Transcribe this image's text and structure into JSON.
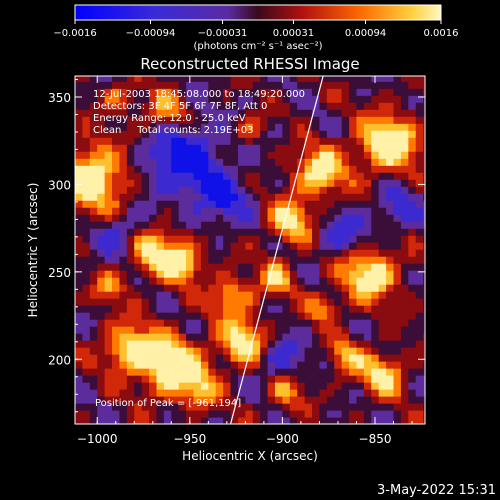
{
  "chart_data": {
    "type": "heatmap",
    "title": "Reconstructed RHESSI Image",
    "xlabel": "Heliocentric X (arcsec)",
    "ylabel": "Heliocentric Y (arcsec)",
    "xlim": [
      -1012,
      -823
    ],
    "ylim": [
      163,
      362
    ],
    "x_ticks": [
      -1000,
      -950,
      -900,
      -850
    ],
    "y_ticks": [
      200,
      250,
      300,
      350
    ],
    "x_tick_labels": [
      "−1000",
      "−950",
      "−900",
      "−850"
    ],
    "y_tick_labels": [
      "200",
      "250",
      "300",
      "350"
    ],
    "colorbar": {
      "range": [
        -0.0016,
        0.0016
      ],
      "tick_values": [
        -0.0016,
        -0.00094,
        -0.00031,
        0.00031,
        0.00094,
        0.0016
      ],
      "tick_labels": [
        "−0.0016",
        "−0.00094",
        "−0.00031",
        "0.00031",
        "0.00094",
        "0.0016"
      ],
      "units_label": "(photons cm⁻² s⁻¹ asec⁻²)"
    },
    "annotations": [
      "12-Jul-2003 18:45:08.000 to 18:49:20.000",
      "Detectors: 3F 4F 5F 6F 7F 8F, Att 0",
      "Energy Range: 12.0 - 25.0 keV",
      "Clean     Total counts: 2.19E+03"
    ],
    "peak_label": "Position of Peak = [-961,194]",
    "limb_line": [
      [
        -928,
        163
      ],
      [
        -878,
        362
      ]
    ]
  },
  "footer": {
    "date": "3-May-2022 15:31"
  }
}
